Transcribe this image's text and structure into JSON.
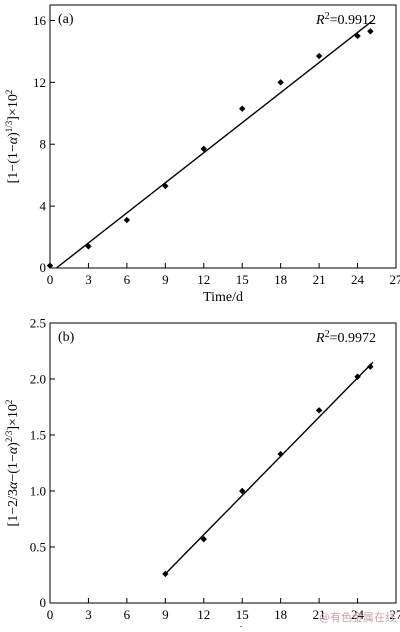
{
  "chart_data": [
    {
      "type": "scatter",
      "panel_label": "(a)",
      "xlabel": "Time/d",
      "ylabel": "[1−(1−α)^(1/3)]×10²",
      "xlim": [
        0,
        27
      ],
      "ylim": [
        0,
        17
      ],
      "xticks": [
        0,
        3,
        6,
        9,
        12,
        15,
        18,
        21,
        24,
        27
      ],
      "yticks": [
        4,
        8,
        12,
        16
      ],
      "annotation": "R²=0.9912",
      "r2_value": "0.9912",
      "grid": false,
      "series": [
        {
          "x": [
            0,
            3,
            6,
            9,
            12,
            15,
            18,
            21,
            24,
            25
          ],
          "y": [
            0.15,
            1.4,
            3.1,
            5.3,
            7.7,
            10.3,
            12.0,
            13.7,
            15.0,
            15.3
          ]
        }
      ],
      "fit_line": {
        "x": [
          0.5,
          25.2
        ],
        "y": [
          0.0,
          16.0
        ]
      }
    },
    {
      "type": "scatter",
      "panel_label": "(b)",
      "xlabel": "Time/d",
      "ylabel": "[1−2/3α−(1−α)^(2/3)]×10²",
      "xlim": [
        0,
        27
      ],
      "ylim": [
        0,
        2.5
      ],
      "xticks": [
        0,
        3,
        6,
        9,
        12,
        15,
        18,
        21,
        24,
        27
      ],
      "yticks": [
        0.5,
        1.0,
        1.5,
        2.0,
        2.5
      ],
      "ytick_labels": [
        "0.5",
        "1.0",
        "1.5",
        "2.0",
        "2.5"
      ],
      "annotation": "R²=0.9972",
      "r2_value": "0.9972",
      "grid": false,
      "series": [
        {
          "x": [
            9,
            12,
            15,
            18,
            21,
            24,
            25
          ],
          "y": [
            0.26,
            0.57,
            1.0,
            1.33,
            1.72,
            2.02,
            2.11
          ]
        }
      ],
      "fit_line": {
        "x": [
          9.0,
          25.2
        ],
        "y": [
          0.26,
          2.15
        ]
      }
    }
  ],
  "watermark": "@有色金属在线"
}
